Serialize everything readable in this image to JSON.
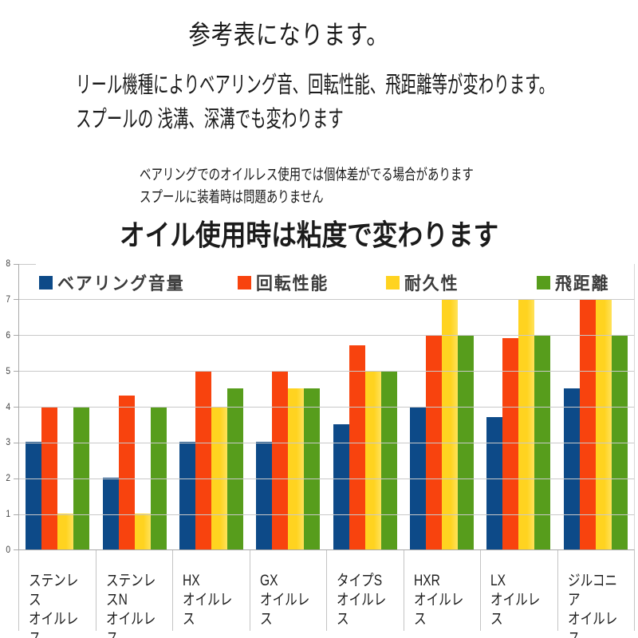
{
  "header": {
    "title": "参考表になります。",
    "intro_line1": "リール機種によりベアリング音、回転性能、飛距離等が変わります。",
    "intro_line2": "スプールの 浅溝、深溝でも変わります",
    "note_line1": "ベアリングでのオイルレス使用では個体差がでる場合があります",
    "note_line2": "スプールに装着時は問題ありません",
    "chart_subtitle": "オイル使用時は粘度で変わります"
  },
  "chart_data": {
    "type": "bar",
    "categories": [
      "ステンレス\nオイルレス",
      "ステンレスN\nオイルレス",
      "HX\nオイルレス",
      "GX\nオイルレス",
      "タイプS\nオイルレス",
      "HXR\nオイルレス",
      "LX\nオイルレス",
      "ジルコニア\nオイルレス"
    ],
    "series": [
      {
        "name": "ベアリング音量",
        "color": "#0d4a88",
        "values": [
          3,
          2,
          3,
          3,
          3.5,
          4,
          3.7,
          4.5
        ]
      },
      {
        "name": "回転性能",
        "color": "#f8430e",
        "values": [
          4,
          4.3,
          5,
          5,
          5.7,
          6,
          5.9,
          7
        ]
      },
      {
        "name": "耐久性",
        "color": "#ffd320",
        "values": [
          1,
          1,
          4,
          4.5,
          5,
          7,
          7,
          7
        ]
      },
      {
        "name": "飛距離",
        "color": "#579d1c",
        "values": [
          4,
          4,
          4.5,
          4.5,
          5,
          6,
          6,
          6
        ]
      }
    ],
    "title": "オイル使用時は粘度で変わります",
    "xlabel": "",
    "ylabel": "",
    "ylim": [
      0,
      8
    ],
    "yticks": [
      0,
      1,
      2,
      3,
      4,
      5,
      6,
      7,
      8
    ],
    "grid": true,
    "legend_position": "top-inside"
  }
}
